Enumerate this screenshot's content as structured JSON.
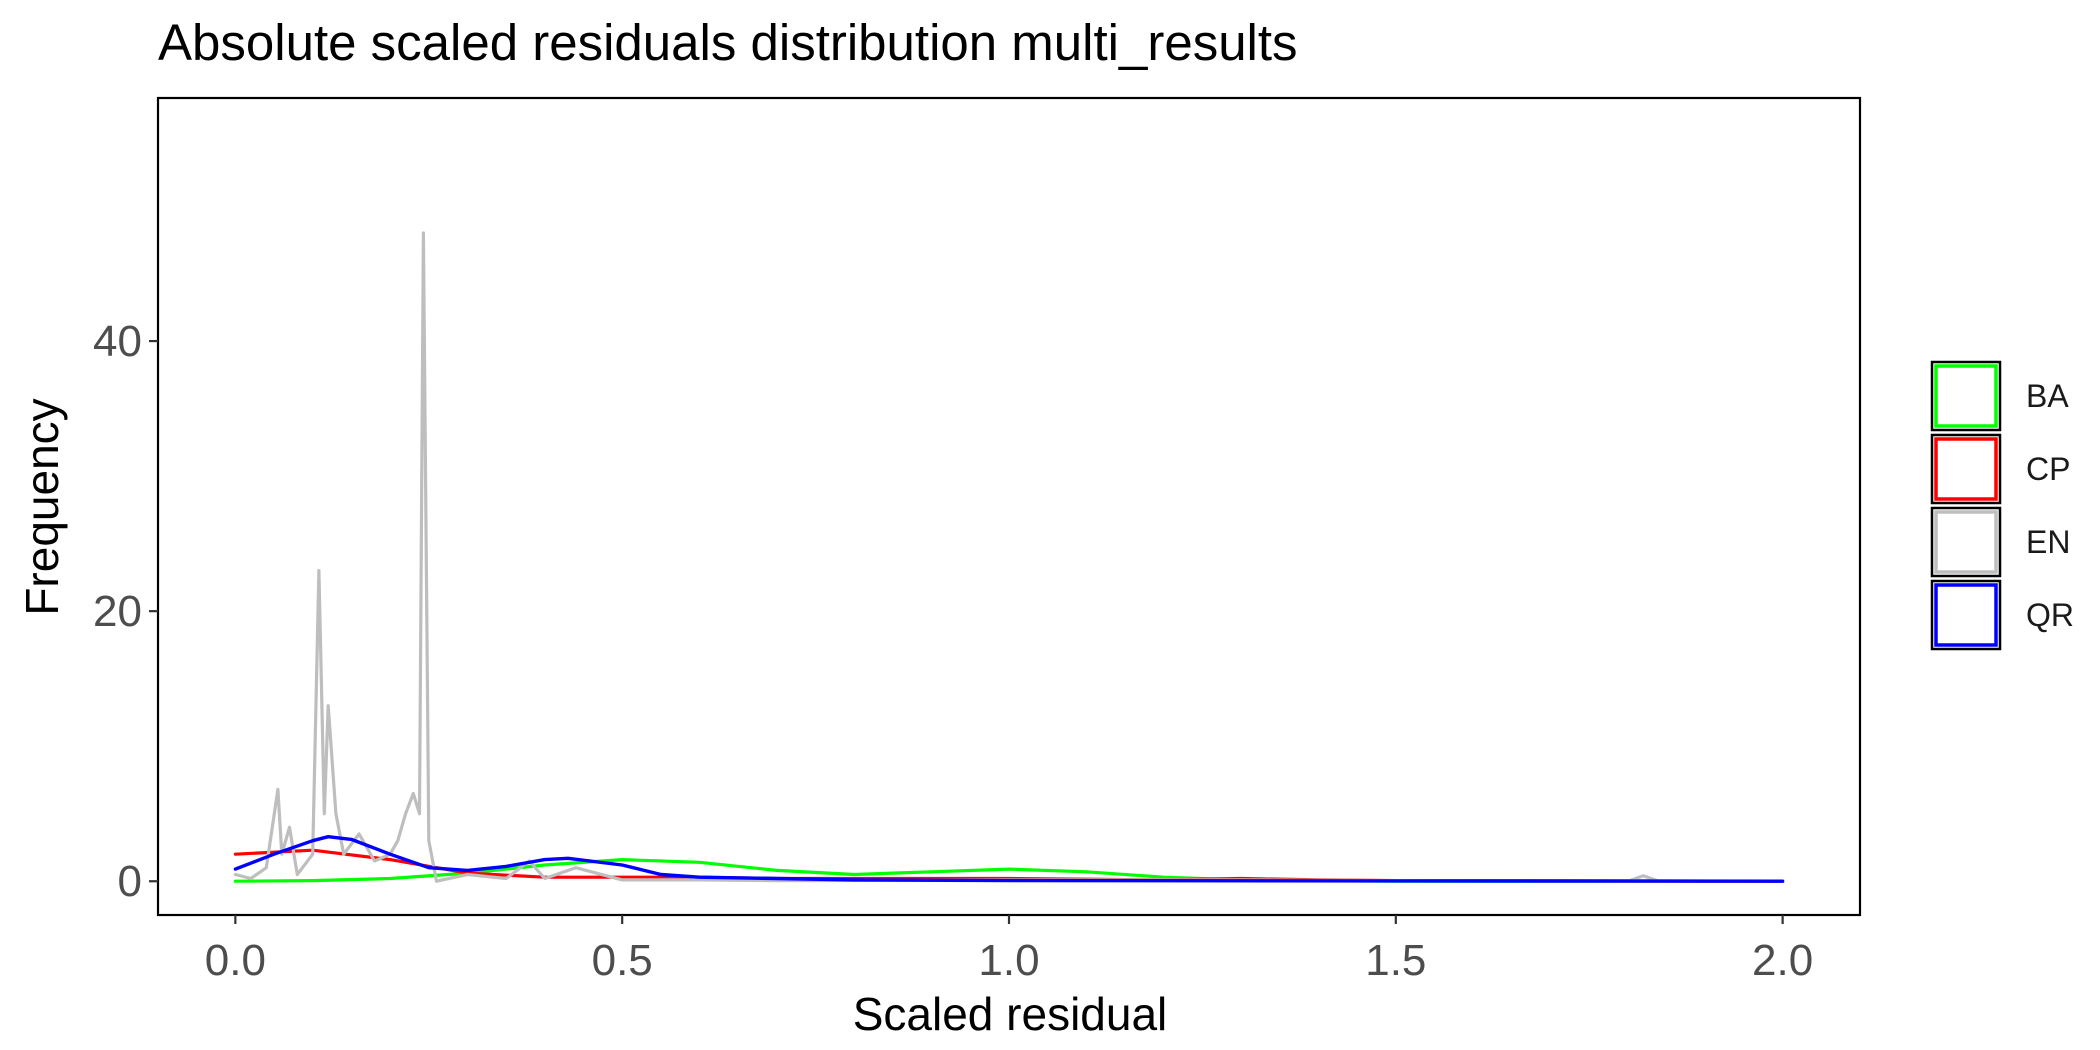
{
  "chart_data": {
    "type": "line",
    "title": "Absolute scaled residuals distribution multi_results",
    "xlabel": "Scaled residual",
    "ylabel": "Frequency",
    "xlim": [
      -0.1,
      2.1
    ],
    "ylim": [
      -2.5,
      58
    ],
    "x_ticks": [
      0.0,
      0.5,
      1.0,
      1.5,
      2.0
    ],
    "x_tick_labels": [
      "0.0",
      "0.5",
      "1.0",
      "1.5",
      "2.0"
    ],
    "y_ticks": [
      0,
      20,
      40
    ],
    "y_tick_labels": [
      "0",
      "20",
      "40"
    ],
    "grid": false,
    "legend_position": "right",
    "series": [
      {
        "name": "BA",
        "color": "#00ff00",
        "points": [
          [
            0.0,
            0.0
          ],
          [
            0.1,
            0.05
          ],
          [
            0.2,
            0.2
          ],
          [
            0.3,
            0.6
          ],
          [
            0.4,
            1.2
          ],
          [
            0.5,
            1.6
          ],
          [
            0.6,
            1.4
          ],
          [
            0.7,
            0.8
          ],
          [
            0.8,
            0.5
          ],
          [
            0.9,
            0.7
          ],
          [
            1.0,
            0.9
          ],
          [
            1.1,
            0.7
          ],
          [
            1.2,
            0.3
          ],
          [
            1.3,
            0.1
          ],
          [
            1.4,
            0.03
          ],
          [
            1.5,
            0.0
          ],
          [
            2.0,
            0.0
          ]
        ]
      },
      {
        "name": "CP",
        "color": "#ff0000",
        "points": [
          [
            0.0,
            2.0
          ],
          [
            0.1,
            2.3
          ],
          [
            0.2,
            1.6
          ],
          [
            0.3,
            0.6
          ],
          [
            0.4,
            0.3
          ],
          [
            0.5,
            0.3
          ],
          [
            0.6,
            0.3
          ],
          [
            0.7,
            0.2
          ],
          [
            0.8,
            0.2
          ],
          [
            1.0,
            0.2
          ],
          [
            1.2,
            0.1
          ],
          [
            1.3,
            0.2
          ],
          [
            1.4,
            0.1
          ],
          [
            1.5,
            0.05
          ],
          [
            2.0,
            0.0
          ]
        ]
      },
      {
        "name": "EN",
        "color": "#bebebe",
        "points": [
          [
            0.0,
            0.5
          ],
          [
            0.02,
            0.2
          ],
          [
            0.04,
            1.0
          ],
          [
            0.055,
            6.8
          ],
          [
            0.06,
            2.0
          ],
          [
            0.07,
            4.0
          ],
          [
            0.08,
            0.5
          ],
          [
            0.1,
            2.0
          ],
          [
            0.108,
            23.0
          ],
          [
            0.115,
            5.0
          ],
          [
            0.12,
            13.0
          ],
          [
            0.13,
            5.0
          ],
          [
            0.14,
            2.0
          ],
          [
            0.16,
            3.5
          ],
          [
            0.18,
            1.5
          ],
          [
            0.2,
            2.0
          ],
          [
            0.21,
            3.0
          ],
          [
            0.22,
            5.0
          ],
          [
            0.23,
            6.5
          ],
          [
            0.238,
            5.0
          ],
          [
            0.243,
            48.0
          ],
          [
            0.25,
            3.0
          ],
          [
            0.26,
            0.0
          ],
          [
            0.3,
            0.5
          ],
          [
            0.35,
            0.2
          ],
          [
            0.38,
            1.5
          ],
          [
            0.4,
            0.2
          ],
          [
            0.44,
            1.0
          ],
          [
            0.5,
            0.1
          ],
          [
            0.6,
            0.1
          ],
          [
            0.7,
            0.05
          ],
          [
            1.0,
            0.1
          ],
          [
            1.3,
            0.1
          ],
          [
            1.5,
            0.05
          ],
          [
            1.8,
            0.0
          ],
          [
            1.82,
            0.4
          ],
          [
            1.84,
            0.0
          ],
          [
            2.0,
            0.0
          ]
        ]
      },
      {
        "name": "QR",
        "color": "#0000ff",
        "points": [
          [
            0.0,
            0.9
          ],
          [
            0.05,
            2.0
          ],
          [
            0.1,
            3.0
          ],
          [
            0.12,
            3.3
          ],
          [
            0.15,
            3.1
          ],
          [
            0.2,
            2.0
          ],
          [
            0.25,
            1.0
          ],
          [
            0.3,
            0.8
          ],
          [
            0.35,
            1.1
          ],
          [
            0.4,
            1.6
          ],
          [
            0.43,
            1.7
          ],
          [
            0.5,
            1.2
          ],
          [
            0.55,
            0.5
          ],
          [
            0.6,
            0.3
          ],
          [
            0.7,
            0.2
          ],
          [
            0.8,
            0.1
          ],
          [
            1.0,
            0.05
          ],
          [
            2.0,
            0.0
          ]
        ]
      }
    ]
  }
}
